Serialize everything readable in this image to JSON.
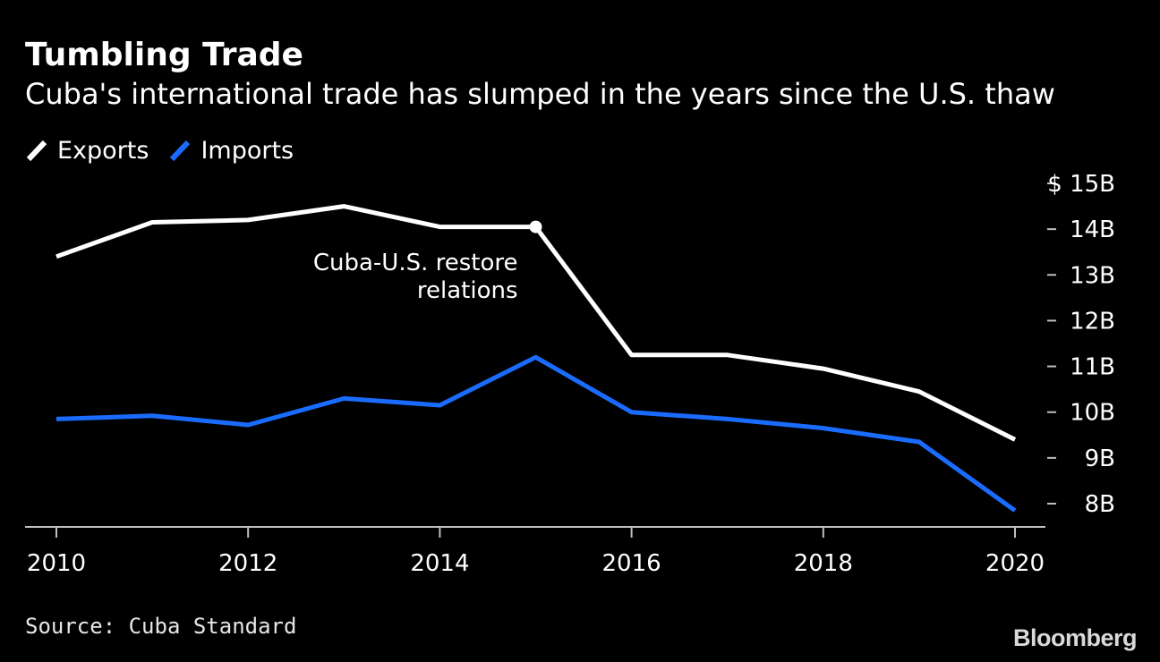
{
  "title": "Tumbling Trade",
  "subtitle": "Cuba's international trade has slumped in the years since the U.S. thaw",
  "source": "Source: Cuba Standard",
  "logo": "Bloomberg",
  "colors": {
    "background": "#000000",
    "exports": "#ffffff",
    "imports": "#1a6cff",
    "axis": "#bfbfbf"
  },
  "chart_data": {
    "type": "line",
    "x": [
      2010,
      2011,
      2012,
      2013,
      2014,
      2015,
      2016,
      2017,
      2018,
      2019,
      2020
    ],
    "series": [
      {
        "name": "Exports",
        "color": "#ffffff",
        "values": [
          13.4,
          14.15,
          14.2,
          14.5,
          14.05,
          14.05,
          11.25,
          11.25,
          10.95,
          10.45,
          9.4
        ]
      },
      {
        "name": "Imports",
        "color": "#1a6cff",
        "values": [
          9.85,
          9.92,
          9.72,
          10.3,
          10.15,
          11.2,
          10.0,
          9.85,
          9.65,
          9.35,
          7.85
        ]
      }
    ],
    "xlim": [
      2010,
      2020
    ],
    "ylim": [
      7.5,
      15
    ],
    "x_ticks": [
      2010,
      2012,
      2014,
      2016,
      2018,
      2020
    ],
    "x_tick_labels": [
      "2010",
      "2012",
      "2014",
      "2016",
      "2018",
      "2020"
    ],
    "y_ticks": [
      15,
      14,
      13,
      12,
      11,
      10,
      9,
      8
    ],
    "y_tick_labels": [
      "$ 15B",
      "14B",
      "13B",
      "12B",
      "11B",
      "10B",
      "9B",
      "8B"
    ],
    "y_axis_side": "right",
    "grid": false,
    "legend_position": "top-left",
    "annotation": {
      "x": 2015,
      "y": 14.05,
      "lines": [
        "Cuba-U.S. restore",
        "relations"
      ]
    }
  }
}
